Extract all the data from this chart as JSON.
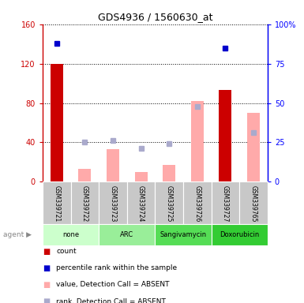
{
  "title": "GDS4936 / 1560630_at",
  "samples": [
    "GSM339721",
    "GSM339722",
    "GSM339723",
    "GSM339724",
    "GSM339725",
    "GSM339726",
    "GSM339727",
    "GSM339765"
  ],
  "count_values": [
    120,
    0,
    0,
    0,
    0,
    0,
    93,
    0
  ],
  "percentile_rank_values": [
    88,
    0,
    0,
    0,
    0,
    0,
    85,
    0
  ],
  "absent_value_values": [
    0,
    13,
    33,
    10,
    17,
    82,
    0,
    70
  ],
  "absent_rank_values": [
    0,
    25,
    26,
    21,
    24,
    48,
    0,
    31
  ],
  "count_color": "#cc0000",
  "percentile_color": "#0000cc",
  "absent_value_color": "#ffaaaa",
  "absent_rank_color": "#aaaacc",
  "left_ylim": [
    0,
    160
  ],
  "right_ylim": [
    0,
    100
  ],
  "left_yticks": [
    0,
    40,
    80,
    120,
    160
  ],
  "right_yticks": [
    0,
    25,
    50,
    75,
    100
  ],
  "right_yticklabels": [
    "0",
    "25",
    "50",
    "75",
    "100%"
  ],
  "agent_spans": [
    {
      "label": "none",
      "start": 0,
      "end": 1,
      "color": "#ccffcc"
    },
    {
      "label": "ARC",
      "start": 2,
      "end": 3,
      "color": "#99ee99"
    },
    {
      "label": "Sangivamycin",
      "start": 4,
      "end": 5,
      "color": "#55dd55"
    },
    {
      "label": "Doxorubicin",
      "start": 6,
      "end": 7,
      "color": "#33cc33"
    }
  ],
  "legend_items": [
    {
      "color": "#cc0000",
      "label": "count"
    },
    {
      "color": "#0000cc",
      "label": "percentile rank within the sample"
    },
    {
      "color": "#ffaaaa",
      "label": "value, Detection Call = ABSENT"
    },
    {
      "color": "#aaaacc",
      "label": "rank, Detection Call = ABSENT"
    }
  ]
}
